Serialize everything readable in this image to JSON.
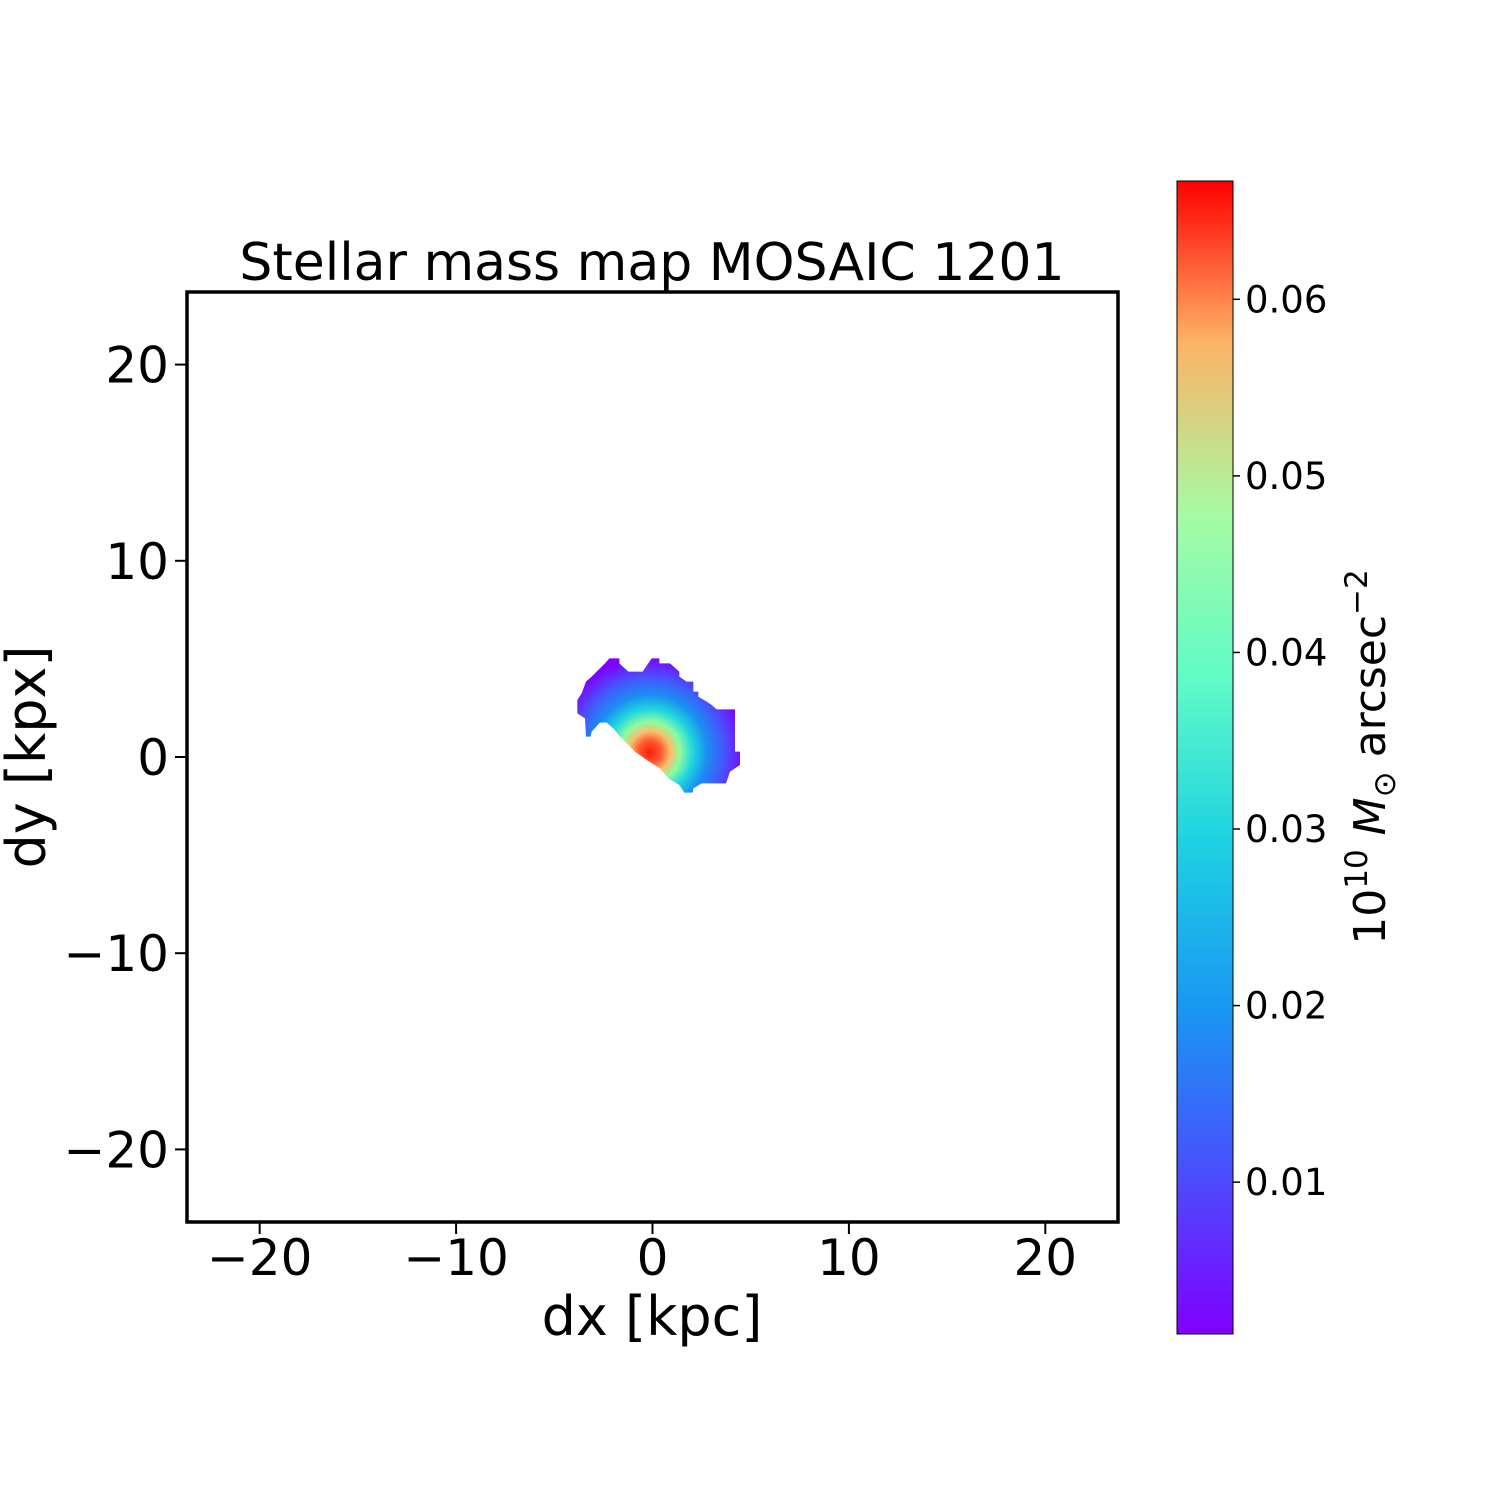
{
  "chart_data": {
    "type": "heatmap",
    "title": "Stellar mass map MOSAIC 1201",
    "xlabel": "dx [kpc]",
    "ylabel": "dy [kpx]",
    "xlim": [
      -23.7,
      23.7
    ],
    "ylim": [
      -23.7,
      23.7
    ],
    "xticks": [
      -20,
      -10,
      0,
      10,
      20
    ],
    "yticks": [
      -20,
      -10,
      0,
      10,
      20
    ],
    "xtick_labels": [
      "−20",
      "−10",
      "0",
      "10",
      "20"
    ],
    "ytick_labels": [
      "−20",
      "−10",
      "0",
      "10",
      "20"
    ],
    "grid": false,
    "colormap": "rainbow",
    "colorbar": {
      "label_prefix": "10",
      "label_exp": "10",
      "label_mid": " M",
      "label_sub": "⊙",
      "label_unit": " arcsec",
      "label_unit_exp": "−2",
      "range": [
        0.0014,
        0.0667
      ],
      "ticks": [
        0.01,
        0.02,
        0.03,
        0.04,
        0.05,
        0.06
      ],
      "tick_labels": [
        "0.01",
        "0.02",
        "0.03",
        "0.04",
        "0.05",
        "0.06"
      ]
    },
    "peak": {
      "dx": 0,
      "dy": 0,
      "value": 0.0667
    },
    "source_extent": {
      "dx": [
        -3.8,
        4.5
      ],
      "dy": [
        -1.6,
        5.0
      ]
    }
  }
}
